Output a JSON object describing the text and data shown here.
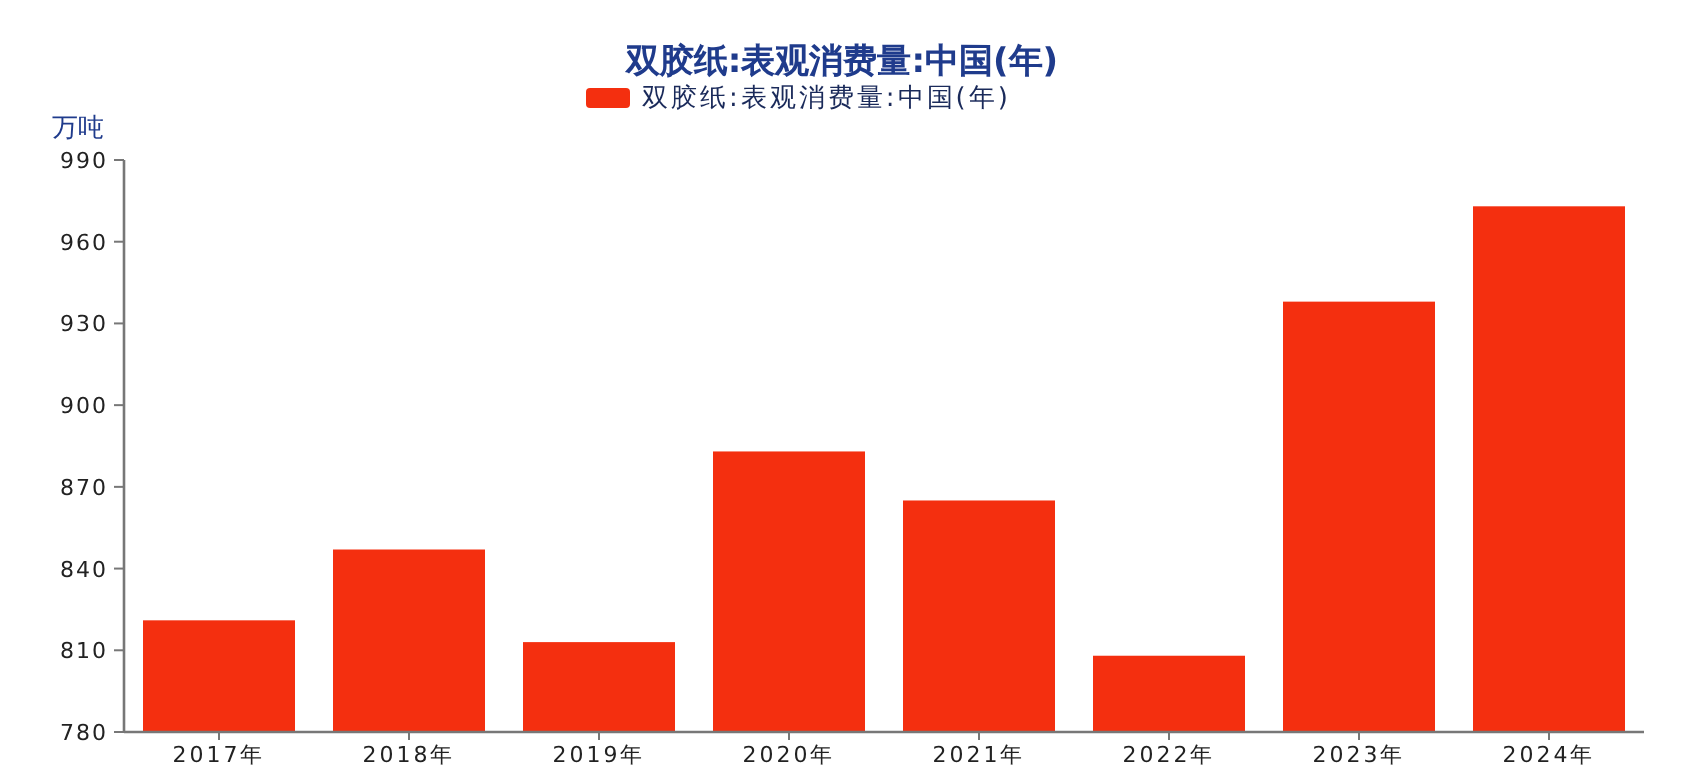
{
  "chart_data": {
    "type": "bar",
    "title": "双胶纸:表观消费量:中国(年)",
    "ylabel": "万吨",
    "categories": [
      "2017年",
      "2018年",
      "2019年",
      "2020年",
      "2021年",
      "2022年",
      "2023年",
      "2024年"
    ],
    "series": [
      {
        "name": "双胶纸:表观消费量:中国(年)",
        "color": "#f42f0f",
        "values": [
          821,
          847,
          813,
          883,
          865,
          808,
          938,
          973
        ]
      }
    ],
    "ylim": [
      780,
      990
    ],
    "yticks": [
      780,
      810,
      840,
      870,
      900,
      930,
      960,
      990
    ],
    "grid": false,
    "legend": "top"
  }
}
